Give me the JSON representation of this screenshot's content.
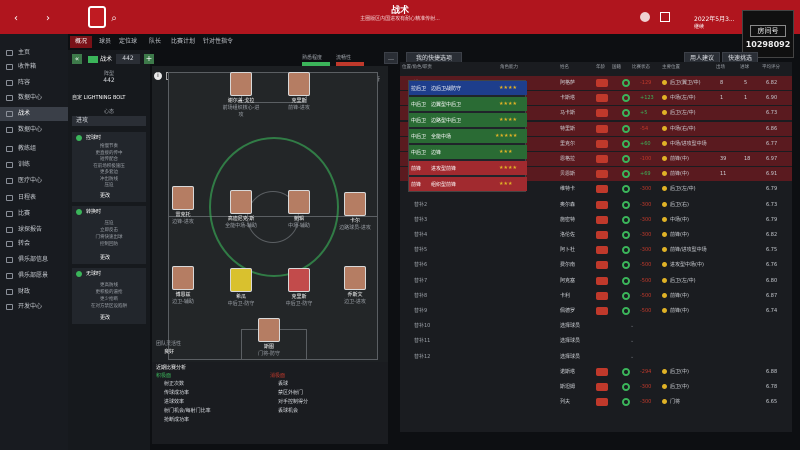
{
  "topbar": {
    "title": "战术",
    "subtitle": "主圈版区内国进攻有耐心精准传射...",
    "date": "2022年5月3...",
    "continue": "继续"
  },
  "streamer": {
    "badge": "房间号",
    "room": "10298092"
  },
  "sidebar": {
    "items": [
      {
        "label": "主页"
      },
      {
        "label": "收件箱"
      },
      {
        "label": "阵容"
      },
      {
        "label": "战术"
      },
      {
        "label": "数据中心"
      },
      {
        "label": "教练组"
      },
      {
        "label": "训练"
      },
      {
        "label": "医疗中心"
      },
      {
        "label": "日程表"
      },
      {
        "label": "比赛"
      },
      {
        "label": "球探报告"
      },
      {
        "label": "转会"
      },
      {
        "label": "俱乐部信息"
      },
      {
        "label": "俱乐部愿景"
      },
      {
        "label": "财政"
      },
      {
        "label": "开发中心"
      }
    ]
  },
  "subnav": {
    "tabs": [
      {
        "label": "概况"
      },
      {
        "label": "球员"
      },
      {
        "label": "定位球"
      },
      {
        "label": "队长"
      },
      {
        "label": "比赛计划"
      },
      {
        "label": "针对性指令"
      }
    ]
  },
  "leftpanel": {
    "header": "战术",
    "formation_label": "阵型",
    "formation": "442",
    "mentality": "自定 LIGHTNING BOLT",
    "style_label": "心态",
    "style": "进攻",
    "card1": {
      "title": "控球时",
      "lines": [
        "拖慢节奏",
        "更直接的传中",
        "短传配合",
        "在前场积极施压",
        "更多套边",
        "冲出防线",
        "压迫"
      ],
      "btn": "更改"
    },
    "card2": {
      "title": "转换时",
      "lines": [
        "压迫",
        "立即反击",
        "门将快速出球",
        "控制回防"
      ],
      "btn": "更改"
    },
    "card3": {
      "title": "无球时",
      "lines": [
        "更高防线",
        "更积极的逼抢",
        "更少抢断",
        "在对方禁区设陷阱"
      ],
      "btn": "更改"
    }
  },
  "pitch": {
    "labels": {
      "fitness": "熟悉程度",
      "fluency": "流畅性",
      "analysis": "分析"
    },
    "bottom_label": "团队灵活性",
    "bottom_value": "良好",
    "players": [
      {
        "name": "谢尔盖·戈拉",
        "role": "前场组织核心-进攻"
      },
      {
        "name": "克里斯",
        "role": "前锋-进攻"
      },
      {
        "name": "雷克托",
        "role": "边锋-进攻"
      },
      {
        "name": "高迪尼克·斯",
        "role": "全能中场-辅助"
      },
      {
        "name": "鲍辑",
        "role": "中场-辅助"
      },
      {
        "name": "卡尔",
        "role": "边路球员-进攻"
      },
      {
        "name": "博恩兹",
        "role": "边卫-辅助"
      },
      {
        "name": "希瓜",
        "role": "中后卫-防守"
      },
      {
        "name": "克里斯",
        "role": "中后卫-防守"
      },
      {
        "name": "乔斯文",
        "role": "边卫-进攻"
      },
      {
        "name": "斯图",
        "role": "门将-防守"
      }
    ]
  },
  "bottomleft": {
    "title": "近期比赛分析",
    "left_header": "积极面",
    "left": [
      "射正次数",
      "传球成功率",
      "进球效率",
      "射门机会/每射门比率",
      "抢断成功率"
    ],
    "right_header": "消极面",
    "right": [
      "丢球",
      "禁区外射门",
      "对手控制得分",
      "丢球机会"
    ]
  },
  "controls": {
    "filter_btn": "我的快捷选项",
    "btn1": "用人建议",
    "btn2": "快速挑选"
  },
  "dropdown": {
    "rows": [
      {
        "pos": "拉后卫",
        "role": "边后卫战防守",
        "stars": "★★★★"
      },
      {
        "pos": "中后卫",
        "role": "边翼型中后卫",
        "stars": "★★★★"
      },
      {
        "pos": "中后卫",
        "role": "边路型中后卫",
        "stars": "★★★★"
      },
      {
        "pos": "中后卫",
        "role": "全能中场",
        "stars": "★★★★★"
      },
      {
        "pos": "中后卫",
        "role": "边锋",
        "stars": "★★★"
      },
      {
        "pos": "前锋",
        "role": "进攻型前锋",
        "stars": "★★★★"
      },
      {
        "pos": "前锋",
        "role": "组织型前锋",
        "stars": "★★★"
      }
    ]
  },
  "table": {
    "headers": [
      "位置/角色/职责",
      "角色能力",
      "姓名",
      "年龄",
      "国籍",
      "比赛状态",
      "主要位置",
      "出场",
      "进球",
      "平均评分"
    ],
    "rows": [
      {
        "pos": "进",
        "name": "阿格萨",
        "val": "-129",
        "position": "后卫(翼卫/中)",
        "apps": "8",
        "goals": "5",
        "rating": "6.82"
      },
      {
        "pos": "门",
        "name": "卡斯塔",
        "val": "+123",
        "position": "中场(左/中)",
        "apps": "1",
        "goals": "1",
        "rating": "6.90"
      },
      {
        "pos": "后",
        "name": "马卡斯",
        "val": "+5",
        "position": "后卫(左/中)",
        "apps": "",
        "goals": "",
        "rating": "6.73"
      },
      {
        "pos": "中",
        "name": "特里斯",
        "val": "-54",
        "position": "中场(右/中)",
        "apps": "",
        "goals": "",
        "rating": "6.86"
      },
      {
        "pos": "中",
        "name": "里克尔",
        "val": "+60",
        "position": "中场/进攻型中场",
        "apps": "",
        "goals": "",
        "rating": "6.77"
      },
      {
        "pos": "前",
        "name": "恩格拉",
        "val": "-100",
        "position": "前锋(中)",
        "apps": "39",
        "goals": "18",
        "rating": "6.97"
      },
      {
        "pos": "前",
        "name": "贝恩斯",
        "val": "+69",
        "position": "前锋(中)",
        "apps": "11",
        "goals": "",
        "rating": "6.91"
      },
      {
        "pos": "替补1",
        "name": "维特卡",
        "val": "-300",
        "position": "后卫(左/中)",
        "apps": "",
        "goals": "",
        "rating": "6.79"
      },
      {
        "pos": "替补2",
        "name": "奥尔森",
        "val": "-300",
        "position": "后卫(右)",
        "apps": "",
        "goals": "",
        "rating": "6.73"
      },
      {
        "pos": "替补3",
        "name": "施密特",
        "val": "-300",
        "position": "中场(中)",
        "apps": "",
        "goals": "",
        "rating": "6.79"
      },
      {
        "pos": "替补4",
        "name": "洛伦佐",
        "val": "-300",
        "position": "前锋(中)",
        "apps": "",
        "goals": "",
        "rating": "6.82"
      },
      {
        "pos": "替补5",
        "name": "阿卜杜",
        "val": "-300",
        "position": "前锋/进攻型中场",
        "apps": "",
        "goals": "",
        "rating": "6.75"
      },
      {
        "pos": "替补6",
        "name": "费尔南",
        "val": "-500",
        "position": "进攻型中场(中)",
        "apps": "",
        "goals": "",
        "rating": "6.76"
      },
      {
        "pos": "替补7",
        "name": "阿克塞",
        "val": "-500",
        "position": "后卫(左/中)",
        "apps": "",
        "goals": "",
        "rating": "6.80"
      },
      {
        "pos": "替补8",
        "name": "卡利",
        "val": "-500",
        "position": "前锋(中)",
        "apps": "",
        "goals": "",
        "rating": "6.87"
      },
      {
        "pos": "替补9",
        "name": "佩德罗",
        "val": "-500",
        "position": "前锋(中)",
        "apps": "",
        "goals": "",
        "rating": "6.74"
      },
      {
        "pos": "替补10",
        "name": "选择球员",
        "val": "",
        "position": "",
        "apps": "",
        "goals": "",
        "rating": ""
      },
      {
        "pos": "替补11",
        "name": "选择球员",
        "val": "",
        "position": "",
        "apps": "",
        "goals": "",
        "rating": ""
      },
      {
        "pos": "替补12",
        "name": "选择球员",
        "val": "",
        "position": "",
        "apps": "",
        "goals": "",
        "rating": ""
      },
      {
        "pos": "",
        "name": "诺斯塔",
        "val": "-294",
        "position": "后卫(中)",
        "apps": "",
        "goals": "",
        "rating": "6.88"
      },
      {
        "pos": "",
        "name": "斯坦姆",
        "val": "-300",
        "position": "后卫(中)",
        "apps": "",
        "goals": "",
        "rating": "6.78"
      },
      {
        "pos": "",
        "name": "列夫",
        "val": "-300",
        "position": "门将",
        "apps": "",
        "goals": "",
        "rating": "6.65"
      }
    ]
  },
  "colors": {
    "brand": "#b0151e",
    "panel": "#181b20",
    "accent_green": "#3bb55a",
    "accent_yellow": "#e0b226"
  }
}
